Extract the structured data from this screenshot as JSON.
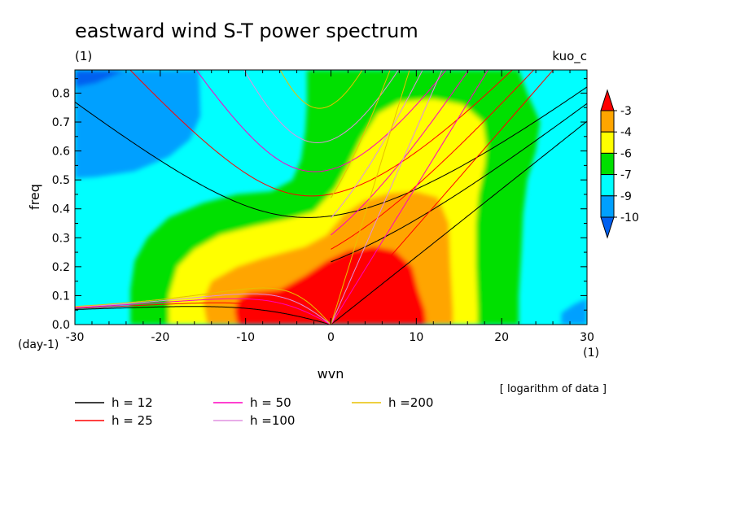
{
  "chart_data": {
    "type": "heatmap",
    "title": "eastward wind S-T power spectrum",
    "subtitle_left": "(1)",
    "subtitle_right": "kuo_c",
    "xlabel": "wvn",
    "ylabel": "freq",
    "x_unit": "(1)",
    "y_unit": "(day-1)",
    "note": "[ logarithm of data ]",
    "xlim": [
      -30,
      30
    ],
    "ylim": [
      0,
      0.88
    ],
    "x_ticks": [
      -30,
      -20,
      -10,
      0,
      10,
      20,
      30
    ],
    "x_tick_labels": [
      "-30",
      "-20",
      "-10",
      "0",
      "10",
      "20",
      "30"
    ],
    "y_ticks": [
      0,
      0.1,
      0.2,
      0.3,
      0.4,
      0.5,
      0.6,
      0.7,
      0.8
    ],
    "y_tick_labels": [
      "0.0",
      "0.1",
      "0.2",
      "0.3",
      "0.4",
      "0.5",
      "0.6",
      "0.7",
      "0.8"
    ],
    "colorbar": {
      "levels": [
        -3,
        -4,
        -6,
        -7,
        -9,
        -10
      ],
      "level_labels": [
        "-3",
        "-4",
        "-6",
        "-7",
        "-9",
        "-10"
      ],
      "colors": [
        "#ff0000",
        "#ffa500",
        "#ffff00",
        "#00e000",
        "#00ffff",
        "#00a0ff",
        "#0060f0"
      ],
      "extend": "both"
    },
    "dispersion_curves": [
      {
        "name": "h = 12",
        "label": "h = 12",
        "h": 12,
        "color": "#000000"
      },
      {
        "name": "h = 25",
        "label": "h = 25",
        "h": 25,
        "color": "#ff0000"
      },
      {
        "name": "h = 50",
        "label": "h = 50",
        "h": 50,
        "color": "#ff00c0"
      },
      {
        "name": "h =100",
        "label": "h =100",
        "h": 100,
        "color": "#e090e0"
      },
      {
        "name": "h =200",
        "label": "h =200",
        "h": 200,
        "color": "#e8c000"
      }
    ]
  }
}
